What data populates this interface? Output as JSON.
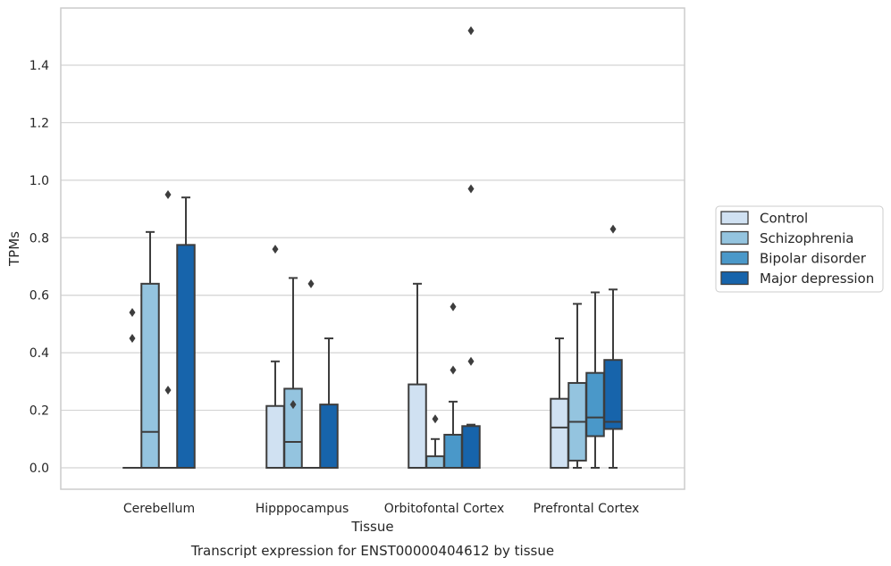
{
  "chart_data": {
    "type": "box",
    "caption": "Transcript expression for ENST00000404612 by tissue",
    "xlabel": "Tissue",
    "ylabel": "TPMs",
    "ylim": [
      -0.07,
      1.6
    ],
    "yticks": [
      0.0,
      0.2,
      0.4,
      0.6,
      0.8,
      1.0,
      1.2,
      1.4
    ],
    "ytick_labels": [
      "0.0",
      "0.2",
      "0.4",
      "0.6",
      "0.8",
      "1.0",
      "1.2",
      "1.4"
    ],
    "grid": "horizontal",
    "legend_position": "center-right, outside",
    "categories": [
      "Cerebellum",
      "Hipppocampus",
      "Orbitofontal Cortex",
      "Prefrontal Cortex"
    ],
    "series": [
      {
        "name": "Control",
        "color": "#d0e1f2",
        "boxes": [
          {
            "q1": 0.0,
            "median": 0.0,
            "q3": 0.0,
            "whislo": 0.0,
            "whishi": 0.0,
            "fliers": [
              0.54,
              0.45
            ]
          },
          {
            "q1": 0.0,
            "median": 0.0,
            "q3": 0.215,
            "whislo": 0.0,
            "whishi": 0.37,
            "fliers": [
              0.76
            ]
          },
          {
            "q1": 0.0,
            "median": 0.0,
            "q3": 0.29,
            "whislo": 0.0,
            "whishi": 0.64,
            "fliers": []
          },
          {
            "q1": 0.0,
            "median": 0.14,
            "q3": 0.24,
            "whislo": 0.0,
            "whishi": 0.45,
            "fliers": []
          }
        ]
      },
      {
        "name": "Schizophrenia",
        "color": "#94c4df",
        "boxes": [
          {
            "q1": 0.0,
            "median": 0.125,
            "q3": 0.64,
            "whislo": 0.0,
            "whishi": 0.82,
            "fliers": []
          },
          {
            "q1": 0.0,
            "median": 0.09,
            "q3": 0.275,
            "whislo": 0.0,
            "whishi": 0.66,
            "fliers": [
              0.22
            ]
          },
          {
            "q1": 0.0,
            "median": 0.0,
            "q3": 0.04,
            "whislo": 0.0,
            "whishi": 0.1,
            "fliers": [
              0.17
            ]
          },
          {
            "q1": 0.025,
            "median": 0.16,
            "q3": 0.295,
            "whislo": 0.0,
            "whishi": 0.57,
            "fliers": []
          }
        ]
      },
      {
        "name": "Bipolar disorder",
        "color": "#4a98c9",
        "boxes": [
          {
            "q1": 0.0,
            "median": 0.0,
            "q3": 0.0,
            "whislo": 0.0,
            "whishi": 0.0,
            "fliers": [
              0.27,
              0.95
            ]
          },
          {
            "q1": 0.0,
            "median": 0.0,
            "q3": 0.0,
            "whislo": 0.0,
            "whishi": 0.0,
            "fliers": [
              0.64
            ]
          },
          {
            "q1": 0.0,
            "median": 0.0,
            "q3": 0.115,
            "whislo": 0.0,
            "whishi": 0.23,
            "fliers": [
              0.56,
              0.34
            ]
          },
          {
            "q1": 0.11,
            "median": 0.175,
            "q3": 0.33,
            "whislo": 0.0,
            "whishi": 0.61,
            "fliers": []
          }
        ]
      },
      {
        "name": "Major depression",
        "color": "#1764ab",
        "boxes": [
          {
            "q1": 0.0,
            "median": 0.0,
            "q3": 0.775,
            "whislo": 0.0,
            "whishi": 0.94,
            "fliers": []
          },
          {
            "q1": 0.0,
            "median": 0.0,
            "q3": 0.22,
            "whislo": 0.0,
            "whishi": 0.45,
            "fliers": []
          },
          {
            "q1": 0.0,
            "median": 0.0,
            "q3": 0.145,
            "whislo": 0.0,
            "whishi": 0.15,
            "fliers": [
              1.52,
              0.97,
              0.37
            ]
          },
          {
            "q1": 0.135,
            "median": 0.16,
            "q3": 0.375,
            "whislo": 0.0,
            "whishi": 0.62,
            "fliers": [
              0.83
            ]
          }
        ]
      }
    ]
  }
}
